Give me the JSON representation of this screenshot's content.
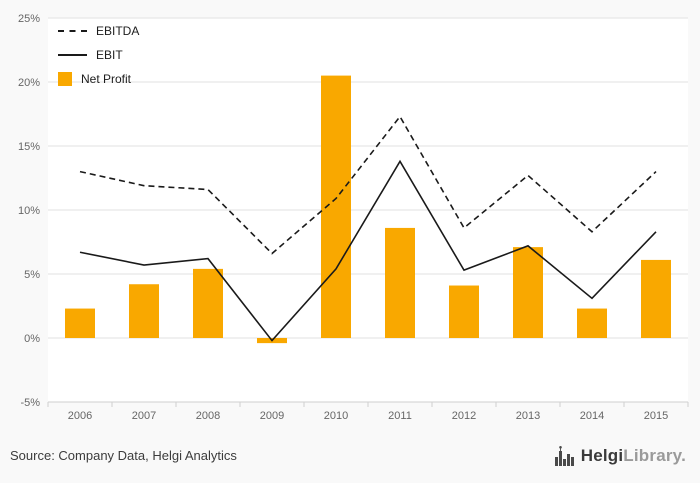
{
  "colors": {
    "accent_bar": "#F9A800",
    "line_color": "#1A1A1A",
    "grid": "#E2E2E2",
    "axis_line": "#CFCFCF",
    "axis_text": "#666666",
    "plot_background": "#FFFFFF"
  },
  "chart_data": {
    "type": "bar",
    "subtype": "combo-bar-line",
    "title": "",
    "xlabel": "",
    "ylabel": "",
    "categories": [
      "2006",
      "2007",
      "2008",
      "2009",
      "2010",
      "2011",
      "2012",
      "2013",
      "2014",
      "2015"
    ],
    "series": [
      {
        "name": "EBITDA",
        "type": "line",
        "style": "dashed",
        "color": "#1A1A1A",
        "values": [
          13.0,
          11.9,
          11.6,
          6.6,
          10.9,
          17.3,
          8.6,
          12.7,
          8.3,
          13.0
        ]
      },
      {
        "name": "EBIT",
        "type": "line",
        "style": "solid",
        "color": "#1A1A1A",
        "values": [
          6.7,
          5.7,
          6.2,
          -0.2,
          5.4,
          13.8,
          5.3,
          7.2,
          3.1,
          8.3
        ]
      },
      {
        "name": "Net Profit",
        "type": "bar",
        "color": "#F9A800",
        "values": [
          2.3,
          4.2,
          5.4,
          -0.4,
          20.5,
          8.6,
          4.1,
          7.1,
          2.3,
          6.1
        ]
      }
    ],
    "ylim": [
      -5,
      25
    ],
    "ytick_step": 5,
    "ytick_suffix": "%",
    "grid": true,
    "legend_position": "top-left"
  },
  "footer": {
    "source": "Source: Company Data, Helgi Analytics",
    "logo_primary": "Helgi",
    "logo_secondary": "Library",
    "logo_dot": "."
  }
}
